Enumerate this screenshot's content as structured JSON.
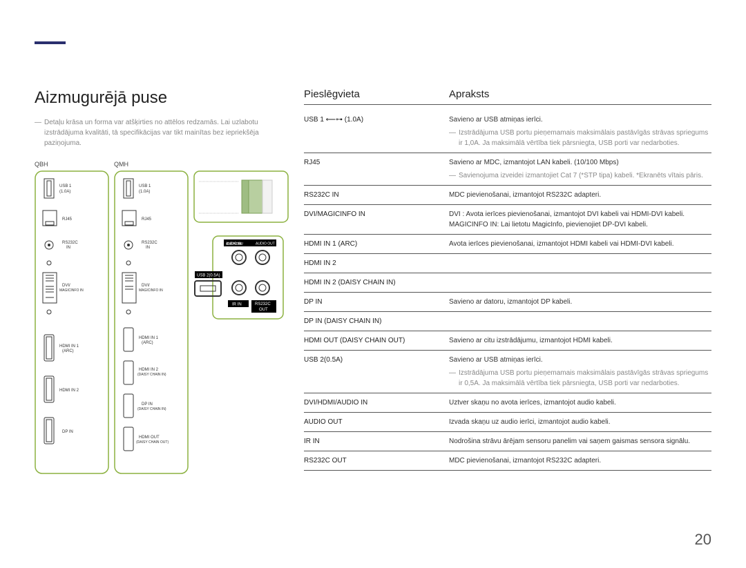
{
  "title": "Aizmugurējā puse",
  "left_note": "Detaļu krāsa un forma var atšķirties no attēlos redzamās. Lai uzlabotu izstrādājuma kvalitāti, tā specifikācijas var tikt mainītas bez iepriekšēja paziņojuma.",
  "diag_labels": {
    "qbh": "QBH",
    "qmh": "QMH"
  },
  "port_labels": {
    "usb1": "USB 1",
    "usb1_sub": "(1.0A)",
    "rj45": "RJ45",
    "rs232c": "RS232C",
    "rs232c_sub": "IN",
    "dvi": "DVI/",
    "dvi_sub": "MAGICINFO IN",
    "hdmi1": "HDMI IN 1",
    "hdmi1_sub": "(ARC)",
    "hdmi2": "HDMI IN 2",
    "hdmi2_daisy": "HDMI IN 2",
    "hdmi2_daisy_sub": "(DAISY CHAIN IN)",
    "dpin": "DP IN",
    "dpin_daisy": "DP IN",
    "dpin_daisy_sub": "(DAISY CHAIN IN)",
    "hdmiout": "HDMI OUT",
    "hdmiout_sub": "(DAISY CHAIN OUT)",
    "audio_in": "DVI/HDMI/",
    "audio_in2": "AUDIO IN",
    "audio_out": "AUDIO OUT",
    "usb2": "USB 2(0.5A)",
    "irin": "IR IN",
    "rs232out": "RS232C",
    "rs232out_sub": "OUT"
  },
  "table_headers": {
    "port": "Pieslēgvieta",
    "desc": "Apraksts"
  },
  "rows": [
    {
      "port_html": "USB 1 ⟵⊶ (1.0A)",
      "desc": "Savieno ar USB atmiņas ierīci.",
      "note": "Izstrādājuma USB portu pieņemamais maksimālais pastāvīgās strāvas spriegums ir 1,0A. Ja maksimālā vērtība tiek pārsniegta, USB porti var nedarboties."
    },
    {
      "port_html": "RJ45",
      "desc": "Savieno ar MDC, izmantojot LAN kabeli. (10/100 Mbps)",
      "note": "Savienojuma izveidei izmantojiet Cat 7 (*STP tipa) kabeli. *Ekranēts vītais pāris."
    },
    {
      "port_html": "RS232C IN",
      "desc": "MDC pievienošanai, izmantojot RS232C adapteri."
    },
    {
      "port_html": "DVI/MAGICINFO IN",
      "desc": "DVI : Avota ierīces pievienošanai, izmantojot DVI kabeli vai HDMI-DVI kabeli.",
      "desc2": "MAGICINFO IN: Lai lietotu MagicInfo, pievienojiet DP-DVI kabeli."
    },
    {
      "port_html": "HDMI IN 1 (ARC)",
      "desc": "Avota ierīces pievienošanai, izmantojot HDMI kabeli vai HDMI-DVI kabeli."
    },
    {
      "port_html": "HDMI IN 2",
      "desc": ""
    },
    {
      "port_html": "HDMI IN 2 (DAISY CHAIN IN)",
      "desc": ""
    },
    {
      "port_html": "DP IN",
      "desc": "Savieno ar datoru, izmantojot DP kabeli."
    },
    {
      "port_html": "DP IN (DAISY CHAIN IN)",
      "desc": ""
    },
    {
      "port_html": "HDMI OUT (DAISY CHAIN OUT)",
      "desc": "Savieno ar citu izstrādājumu, izmantojot HDMI kabeli."
    },
    {
      "port_html": "USB 2(0.5A)",
      "desc": "Savieno ar USB atmiņas ierīci.",
      "note": "Izstrādājuma USB portu pieņemamais maksimālais pastāvīgās strāvas spriegums ir 0,5A. Ja maksimālā vērtība tiek pārsniegta, USB porti var nedarboties."
    },
    {
      "port_html": "DVI/HDMI/AUDIO IN",
      "desc": "Uztver skaņu no avota ierīces, izmantojot audio kabeli."
    },
    {
      "port_html": "AUDIO OUT",
      "desc": "Izvada skaņu uz audio ierīci, izmantojot audio kabeli."
    },
    {
      "port_html": "IR IN",
      "desc": "Nodrošina strāvu ārējam sensoru panelim vai saņem gaismas sensora signālu."
    },
    {
      "port_html": "RS232C OUT",
      "desc": "MDC pievienošanai, izmantojot RS232C adapteri."
    }
  ],
  "page_number": "20",
  "colors": {
    "accent": "#8bb13f",
    "border": "#555555",
    "muted": "#888888"
  }
}
